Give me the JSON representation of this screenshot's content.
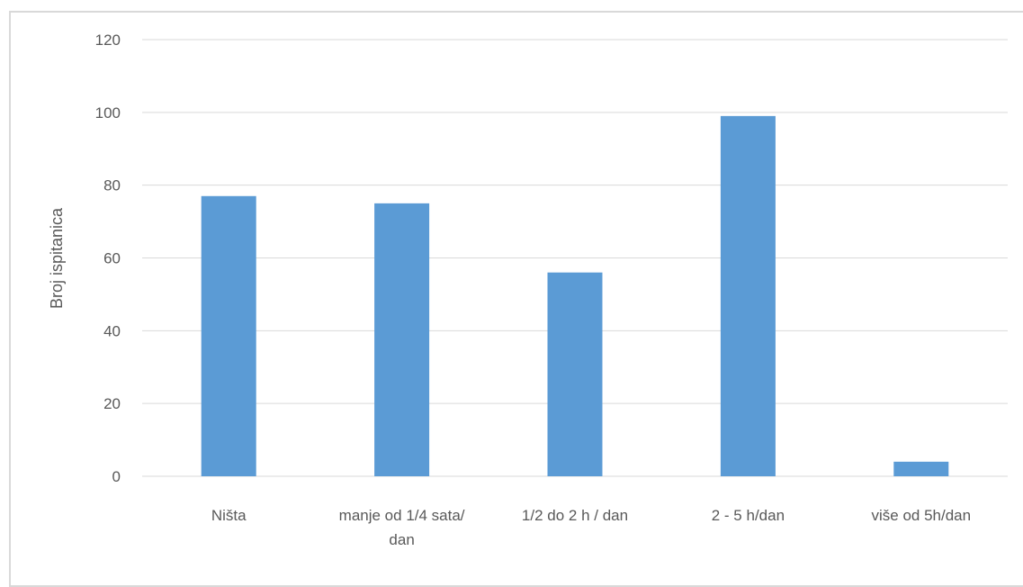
{
  "chart_data": {
    "type": "bar",
    "title": "",
    "xlabel": "",
    "ylabel": "Broj ispitanica",
    "ylim": [
      0,
      120
    ],
    "yticks": [
      0,
      20,
      40,
      60,
      80,
      100,
      120
    ],
    "grid": true,
    "legend": "none",
    "categories": [
      [
        "Ništa"
      ],
      [
        "manje od 1/4 sata/",
        "dan"
      ],
      [
        "1/2 do 2 h / dan"
      ],
      [
        "2 - 5 h/dan"
      ],
      [
        "više od 5h/dan"
      ]
    ],
    "values": [
      77,
      75,
      56,
      99,
      4
    ],
    "bar_color": "#5b9bd5",
    "grid_color": "#d9d9d9",
    "text_color": "#595959"
  }
}
